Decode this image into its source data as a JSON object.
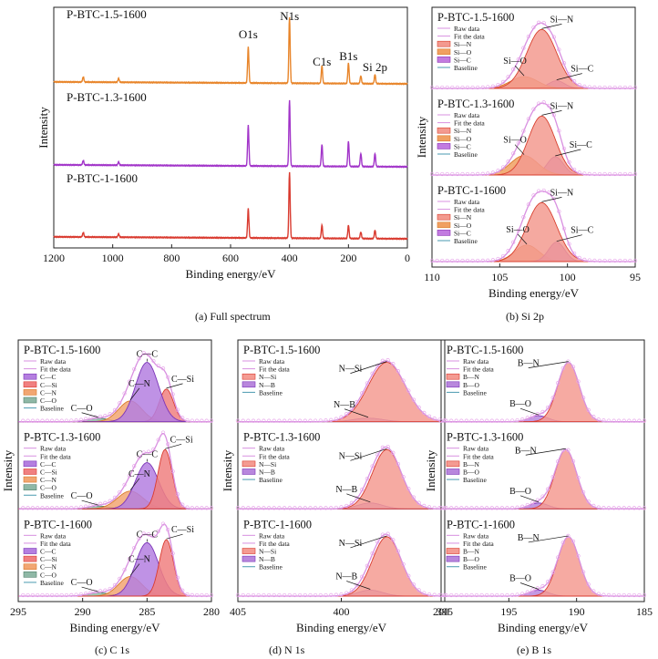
{
  "captions": {
    "a": "(a) Full spectrum",
    "b": "(b) Si 2p",
    "c": "(c) C 1s",
    "d": "(d) N 1s",
    "e": "(e) B 1s"
  },
  "chart_data": [
    {
      "id": "a",
      "type": "line",
      "xlabel": "Binding energy/eV",
      "ylabel": "Intensity",
      "xlim": [
        1200,
        0
      ],
      "x_ticks": [
        "1200",
        "1000",
        "800",
        "600",
        "400",
        "200",
        "0"
      ],
      "peak_labels": [
        "O1s",
        "N1s",
        "C1s",
        "B1s",
        "Si 2p"
      ],
      "series": [
        {
          "name": "P-BTC-1.5-1600",
          "color": "#e8852a",
          "peaks": [
            {
              "x": 1100,
              "y": 0.08
            },
            {
              "x": 980,
              "y": 0.06
            },
            {
              "x": 540,
              "y": 0.55
            },
            {
              "x": 400,
              "y": 1.0
            },
            {
              "x": 290,
              "y": 0.27
            },
            {
              "x": 200,
              "y": 0.31
            },
            {
              "x": 158,
              "y": 0.12
            },
            {
              "x": 110,
              "y": 0.14
            }
          ]
        },
        {
          "name": "P-BTC-1.3-1600",
          "color": "#a235c9",
          "peaks": [
            {
              "x": 1100,
              "y": 0.07
            },
            {
              "x": 980,
              "y": 0.05
            },
            {
              "x": 540,
              "y": 0.62
            },
            {
              "x": 400,
              "y": 1.0
            },
            {
              "x": 290,
              "y": 0.33
            },
            {
              "x": 200,
              "y": 0.38
            },
            {
              "x": 158,
              "y": 0.2
            },
            {
              "x": 110,
              "y": 0.2
            }
          ]
        },
        {
          "name": "P-BTC-1-1600",
          "color": "#d93a2f",
          "peaks": [
            {
              "x": 1100,
              "y": 0.07
            },
            {
              "x": 980,
              "y": 0.05
            },
            {
              "x": 540,
              "y": 0.45
            },
            {
              "x": 400,
              "y": 1.0
            },
            {
              "x": 290,
              "y": 0.2
            },
            {
              "x": 200,
              "y": 0.2
            },
            {
              "x": 158,
              "y": 0.1
            },
            {
              "x": 110,
              "y": 0.13
            }
          ]
        }
      ]
    },
    {
      "id": "b",
      "type": "area",
      "xlabel": "Binding energy/eV",
      "ylabel": "Intensity",
      "xlim": [
        110,
        95
      ],
      "x_ticks": [
        "110",
        "105",
        "100",
        "95"
      ],
      "legend": [
        "Raw data",
        "Fit the data",
        "Si—N",
        "Si—O",
        "Si—C",
        "Baseline"
      ],
      "panels": [
        {
          "name": "P-BTC-1.5-1600",
          "components": [
            {
              "label": "Si—N",
              "center": 101.9,
              "height": 1.0,
              "width": 1.1
            },
            {
              "label": "Si—O",
              "center": 103.2,
              "height": 0.2,
              "width": 1.0
            },
            {
              "label": "Si—C",
              "center": 100.8,
              "height": 0.13,
              "width": 0.6
            }
          ]
        },
        {
          "name": "P-BTC-1.3-1600",
          "components": [
            {
              "label": "Si—N",
              "center": 101.9,
              "height": 1.0,
              "width": 1.0
            },
            {
              "label": "Si—O",
              "center": 103.2,
              "height": 0.33,
              "width": 1.0
            },
            {
              "label": "Si—C",
              "center": 100.9,
              "height": 0.31,
              "width": 0.6
            }
          ]
        },
        {
          "name": "P-BTC-1-1600",
          "components": [
            {
              "label": "Si—N",
              "center": 101.9,
              "height": 1.0,
              "width": 1.1
            },
            {
              "label": "Si—O",
              "center": 103.0,
              "height": 0.28,
              "width": 0.9
            },
            {
              "label": "Si—C",
              "center": 100.8,
              "height": 0.33,
              "width": 0.6
            }
          ]
        }
      ]
    },
    {
      "id": "c",
      "type": "area",
      "xlabel": "Binding energy/eV",
      "ylabel": "Intensity",
      "xlim": [
        295,
        280
      ],
      "x_ticks": [
        "295",
        "290",
        "285",
        "280"
      ],
      "legend": [
        "Raw data",
        "Fit the data",
        "C—C",
        "C—Si",
        "C—N",
        "C—O",
        "Baseline"
      ],
      "panels": [
        {
          "name": "P-BTC-1.5-1600",
          "components": [
            {
              "label": "C—C",
              "center": 285.0,
              "height": 1.0,
              "width": 0.9
            },
            {
              "label": "C—N",
              "center": 286.3,
              "height": 0.35,
              "width": 0.9
            },
            {
              "label": "C—Si",
              "center": 283.5,
              "height": 0.55,
              "width": 0.55
            },
            {
              "label": "C—O",
              "center": 288.8,
              "height": 0.06,
              "width": 0.8
            }
          ]
        },
        {
          "name": "P-BTC-1.3-1600",
          "components": [
            {
              "label": "C—C",
              "center": 285.0,
              "height": 0.78,
              "width": 0.9
            },
            {
              "label": "C—N",
              "center": 286.3,
              "height": 0.3,
              "width": 1.0
            },
            {
              "label": "C—Si",
              "center": 283.6,
              "height": 1.0,
              "width": 0.55
            },
            {
              "label": "C—O",
              "center": 288.8,
              "height": 0.05,
              "width": 0.8
            }
          ]
        },
        {
          "name": "P-BTC-1-1600",
          "components": [
            {
              "label": "C—C",
              "center": 285.0,
              "height": 0.9,
              "width": 0.9
            },
            {
              "label": "C—N",
              "center": 286.3,
              "height": 0.33,
              "width": 0.9
            },
            {
              "label": "C—Si",
              "center": 283.5,
              "height": 0.95,
              "width": 0.55
            },
            {
              "label": "C—O",
              "center": 288.8,
              "height": 0.06,
              "width": 0.8
            }
          ]
        }
      ]
    },
    {
      "id": "d",
      "type": "area",
      "xlabel": "Binding energy/eV",
      "ylabel": "Intensity",
      "xlim": [
        405,
        395
      ],
      "x_ticks": [
        "405",
        "400",
        "395"
      ],
      "legend": [
        "Raw data",
        "Fit the data",
        "N—Si",
        "N—B",
        "Baseline"
      ],
      "panels": [
        {
          "name": "P-BTC-1.5-1600",
          "components": [
            {
              "label": "N—Si",
              "center": 397.8,
              "height": 1.0,
              "width": 0.9
            },
            {
              "label": "N—B",
              "center": 398.7,
              "height": 0.06,
              "width": 0.7
            }
          ]
        },
        {
          "name": "P-BTC-1.3-1600",
          "components": [
            {
              "label": "N—Si",
              "center": 397.8,
              "height": 1.0,
              "width": 0.7
            },
            {
              "label": "N—B",
              "center": 398.6,
              "height": 0.1,
              "width": 0.6
            }
          ]
        },
        {
          "name": "P-BTC-1-1600",
          "components": [
            {
              "label": "N—Si",
              "center": 397.8,
              "height": 1.0,
              "width": 0.7
            },
            {
              "label": "N—B",
              "center": 398.6,
              "height": 0.1,
              "width": 0.6
            }
          ]
        }
      ]
    },
    {
      "id": "e",
      "type": "area",
      "xlabel": "Binding energy/eV",
      "ylabel": "Intensity",
      "xlim": [
        200,
        185
      ],
      "x_ticks": [
        "200",
        "195",
        "190",
        "185"
      ],
      "legend": [
        "Raw data",
        "Fit the data",
        "B—N",
        "B—O",
        "Baseline"
      ],
      "panels": [
        {
          "name": "P-BTC-1.5-1600",
          "components": [
            {
              "label": "B—N",
              "center": 190.6,
              "height": 1.0,
              "width": 0.8
            },
            {
              "label": "B—O",
              "center": 192.8,
              "height": 0.1,
              "width": 0.7
            }
          ]
        },
        {
          "name": "P-BTC-1.3-1600",
          "components": [
            {
              "label": "B—N",
              "center": 190.8,
              "height": 1.0,
              "width": 0.8
            },
            {
              "label": "B—O",
              "center": 192.8,
              "height": 0.1,
              "width": 0.7
            }
          ]
        },
        {
          "name": "P-BTC-1-1600",
          "components": [
            {
              "label": "B—N",
              "center": 190.6,
              "height": 1.0,
              "width": 0.8
            },
            {
              "label": "B—O",
              "center": 192.8,
              "height": 0.1,
              "width": 0.7
            }
          ]
        }
      ]
    }
  ]
}
